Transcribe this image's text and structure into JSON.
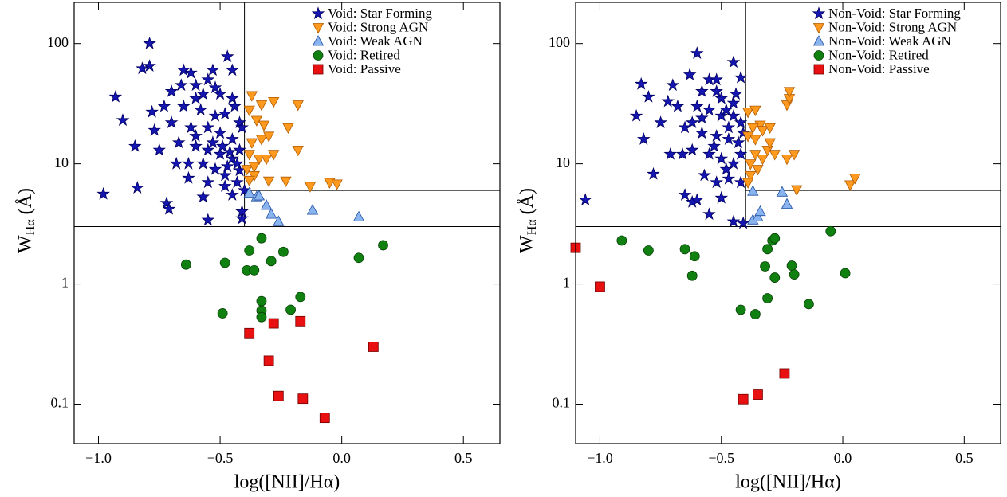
{
  "chart_data": [
    {
      "type": "scatter",
      "xlabel": "log([NII]/Hα)",
      "ylabel": {
        "main": "W",
        "sub": "Hα",
        "rest": " (Å)"
      },
      "xlim": [
        -1.1,
        0.65
      ],
      "ylim": [
        0.047,
        220
      ],
      "log_y": true,
      "legend": "upper right",
      "xticks": [
        {
          "value": -1.0,
          "label": "−1.0"
        },
        {
          "value": -0.5,
          "label": "−0.5"
        },
        {
          "value": 0.0,
          "label": "0.0"
        },
        {
          "value": 0.5,
          "label": "0.5"
        }
      ],
      "yticks": [
        0.1,
        1,
        10,
        100
      ],
      "ref_x": -0.4,
      "ref_y": [
        6,
        3
      ],
      "series": [
        {
          "name": "Void: Star Forming",
          "color": "#1515b0",
          "marker": "star",
          "x": [
            -0.79,
            -0.79,
            -0.82,
            -0.93,
            -0.9,
            -0.98,
            -0.84,
            -0.72,
            -0.71,
            -0.77,
            -0.73,
            -0.65,
            -0.62,
            -0.53,
            -0.47,
            -0.45,
            -0.7,
            -0.6,
            -0.55,
            -0.6,
            -0.5,
            -0.45,
            -0.65,
            -0.58,
            -0.52,
            -0.48,
            -0.42,
            -0.7,
            -0.62,
            -0.55,
            -0.5,
            -0.45,
            -0.41,
            -0.67,
            -0.6,
            -0.55,
            -0.5,
            -0.45,
            -0.42,
            -0.63,
            -0.57,
            -0.52,
            -0.47,
            -0.42,
            -0.63,
            -0.55,
            -0.48,
            -0.43,
            -0.4,
            -0.57,
            -0.55,
            -0.41,
            -0.41,
            -0.75,
            -0.85,
            -0.78,
            -0.66,
            -0.57,
            -0.52,
            -0.44,
            -0.49,
            -0.46,
            -0.43,
            -0.53,
            -0.6,
            -0.68,
            -0.48,
            -0.45
          ],
          "values": [
            100,
            65,
            62,
            36,
            23,
            5.6,
            6.3,
            4.7,
            4.2,
            19,
            30,
            60,
            57,
            60,
            78,
            60,
            40,
            45,
            50,
            35,
            38,
            35,
            30,
            28,
            25,
            26,
            22,
            22,
            20,
            20,
            18,
            16,
            20,
            15,
            14,
            13,
            12,
            11,
            13,
            10,
            10,
            9,
            9.5,
            8.8,
            7.6,
            7,
            6.5,
            7,
            6,
            5.3,
            3.4,
            4,
            3.5,
            13,
            14,
            27,
            45,
            38,
            43,
            30,
            14,
            12.5,
            10,
            15,
            17,
            10,
            8,
            5.5
          ]
        },
        {
          "name": "Void: Strong AGN",
          "color": "#ff9a1f",
          "marker": "tri-down",
          "x": [
            -0.37,
            -0.33,
            -0.28,
            -0.18,
            -0.38,
            -0.35,
            -0.32,
            -0.22,
            -0.18,
            -0.37,
            -0.33,
            -0.3,
            -0.38,
            -0.34,
            -0.28,
            -0.39,
            -0.36,
            -0.38,
            -0.3,
            -0.23,
            -0.13,
            -0.05,
            -0.02,
            -0.36,
            -0.31
          ],
          "values": [
            37,
            31,
            33,
            31,
            28,
            23,
            21,
            20,
            13,
            15,
            16,
            17,
            12,
            11,
            12,
            9,
            8,
            7.3,
            7.2,
            7.2,
            6.5,
            7,
            6.8,
            9.5,
            11
          ]
        },
        {
          "name": "Void: Weak AGN",
          "color": "#8ab4f0",
          "marker": "tri-up",
          "x": [
            -0.38,
            -0.35,
            -0.34,
            -0.31,
            -0.29,
            -0.26,
            -0.12,
            0.07
          ],
          "values": [
            5.7,
            5.3,
            5.4,
            4.5,
            3.8,
            3.3,
            4.1,
            3.6
          ]
        },
        {
          "name": "Void: Retired",
          "color": "#108010",
          "marker": "circle",
          "x": [
            -0.64,
            -0.48,
            -0.33,
            -0.38,
            -0.24,
            -0.29,
            -0.39,
            -0.36,
            0.07,
            0.17,
            -0.49,
            -0.33,
            -0.33,
            -0.33,
            -0.21,
            -0.17
          ],
          "values": [
            1.45,
            1.5,
            2.4,
            1.9,
            1.85,
            1.55,
            1.3,
            1.3,
            1.65,
            2.1,
            0.57,
            0.72,
            0.6,
            0.53,
            0.61,
            0.78
          ]
        },
        {
          "name": "Void: Passive",
          "color": "#e81010",
          "marker": "square",
          "x": [
            -0.38,
            -0.28,
            -0.17,
            0.13,
            -0.3,
            -0.26,
            -0.16,
            -0.07
          ],
          "values": [
            0.39,
            0.47,
            0.49,
            0.3,
            0.23,
            0.117,
            0.111,
            0.077
          ]
        }
      ]
    },
    {
      "type": "scatter",
      "xlabel": "log([NII]/Hα)",
      "ylabel": {
        "main": "W",
        "sub": "Hα",
        "rest": " (Å)"
      },
      "xlim": [
        -1.1,
        0.65
      ],
      "ylim": [
        0.047,
        220
      ],
      "log_y": true,
      "legend": "upper right",
      "xticks": [
        {
          "value": -1.0,
          "label": "−1.0"
        },
        {
          "value": -0.5,
          "label": "−0.5"
        },
        {
          "value": 0.0,
          "label": "0.0"
        },
        {
          "value": 0.5,
          "label": "0.5"
        }
      ],
      "yticks": [
        0.1,
        1,
        10,
        100
      ],
      "ref_x": -0.4,
      "ref_y": [
        6,
        3
      ],
      "series": [
        {
          "name": "Non-Void: Star Forming",
          "color": "#1515b0",
          "marker": "star",
          "x": [
            -1.06,
            -0.83,
            -0.85,
            -0.82,
            -0.75,
            -0.72,
            -0.78,
            -0.71,
            -0.65,
            -0.62,
            -0.6,
            -0.63,
            -0.55,
            -0.45,
            -0.52,
            -0.58,
            -0.5,
            -0.45,
            -0.42,
            -0.68,
            -0.6,
            -0.55,
            -0.5,
            -0.45,
            -0.42,
            -0.65,
            -0.58,
            -0.52,
            -0.47,
            -0.43,
            -0.62,
            -0.55,
            -0.5,
            -0.45,
            -0.42,
            -0.57,
            -0.52,
            -0.47,
            -0.42,
            -0.55,
            -0.45,
            -0.5,
            -0.41,
            -0.8,
            -0.7,
            -0.62,
            -0.52,
            -0.48,
            -0.44,
            -0.58,
            -0.66,
            -0.53,
            -0.47,
            -0.41,
            -0.6,
            -0.48
          ],
          "values": [
            5,
            46,
            25,
            16,
            22,
            33,
            8.2,
            12,
            5.5,
            4.8,
            83,
            55,
            50,
            70,
            50,
            40,
            35,
            32,
            52,
            30,
            30,
            28,
            25,
            25,
            22,
            20,
            18,
            17,
            16,
            15,
            13,
            12,
            11,
            10,
            12,
            8,
            7,
            7.5,
            7,
            3.8,
            3.3,
            5.2,
            3.2,
            36,
            45,
            22,
            40,
            28,
            38,
            24,
            12,
            14,
            20,
            18,
            5,
            9
          ]
        },
        {
          "name": "Non-Void: Strong AGN",
          "color": "#ff9a1f",
          "marker": "tri-down",
          "x": [
            -0.23,
            -0.22,
            -0.39,
            -0.36,
            -0.34,
            -0.37,
            -0.33,
            -0.3,
            -0.39,
            -0.36,
            -0.31,
            -0.28,
            -0.23,
            -0.2,
            -0.36,
            -0.33,
            -0.38,
            -0.35,
            -0.38,
            -0.39,
            -0.19,
            0.03,
            0.05,
            -0.22,
            -0.3
          ],
          "values": [
            31,
            35,
            27,
            28,
            21,
            20,
            19,
            20,
            17,
            16,
            13,
            12,
            11,
            12,
            12,
            11,
            10,
            9,
            8,
            7,
            6.1,
            6.7,
            7.6,
            40,
            15
          ]
        },
        {
          "name": "Non-Void: Weak AGN",
          "color": "#8ab4f0",
          "marker": "tri-up",
          "x": [
            -0.37,
            -0.37,
            -0.35,
            -0.34,
            -0.25,
            -0.23
          ],
          "values": [
            5.9,
            3.4,
            3.6,
            4,
            5.8,
            4.6
          ]
        },
        {
          "name": "Non-Void: Retired",
          "color": "#108010",
          "marker": "circle",
          "x": [
            -0.91,
            -0.8,
            -0.65,
            -0.61,
            -0.62,
            -0.29,
            -0.28,
            -0.31,
            -0.32,
            -0.28,
            -0.21,
            -0.2,
            -0.05,
            0.01,
            -0.42,
            -0.36,
            -0.31,
            -0.14
          ],
          "values": [
            2.3,
            1.9,
            1.95,
            1.7,
            1.17,
            2.3,
            2.4,
            1.95,
            1.4,
            1.13,
            1.42,
            1.2,
            2.75,
            1.23,
            0.61,
            0.56,
            0.76,
            0.68
          ]
        },
        {
          "name": "Non-Void: Passive",
          "color": "#e81010",
          "marker": "square",
          "x": [
            -1.1,
            -1.0,
            -0.24,
            -0.35,
            -0.41
          ],
          "values": [
            2,
            0.95,
            0.18,
            0.12,
            0.11
          ]
        }
      ]
    }
  ]
}
